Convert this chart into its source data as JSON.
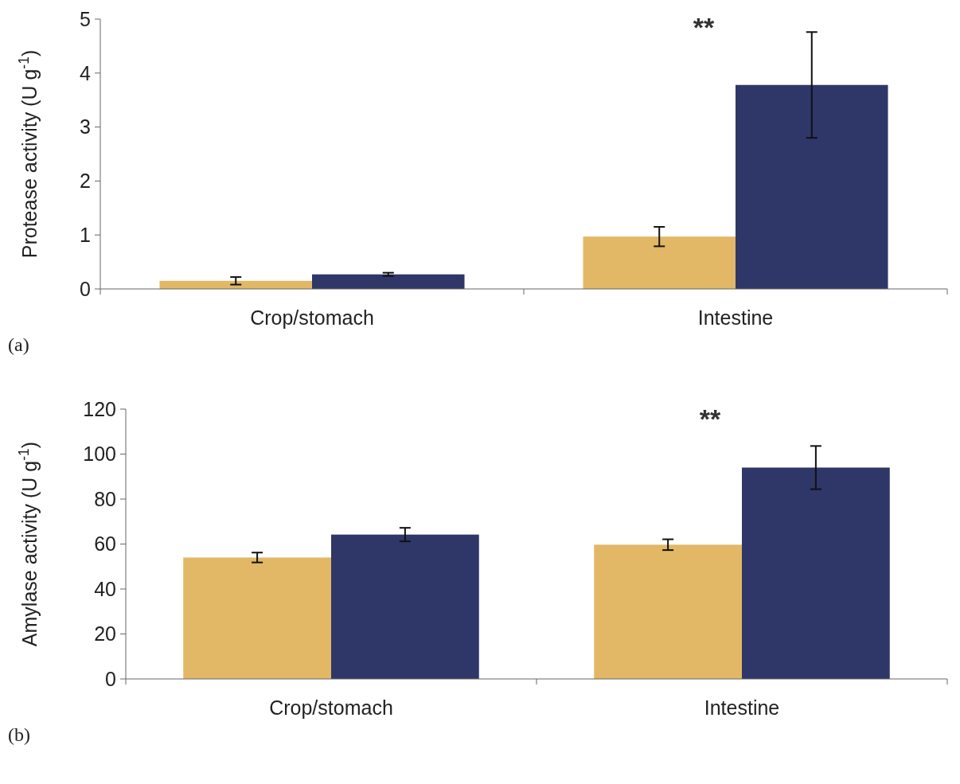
{
  "chart_data": [
    {
      "type": "bar",
      "ylabel": "Protease activity (U g$^{-1}$)",
      "categories": [
        "Crop/stomach",
        "Intestine"
      ],
      "ylim": [
        0,
        5
      ],
      "yticks": [
        0,
        1,
        2,
        3,
        4,
        5
      ],
      "series": [
        {
          "color": "#e2b866",
          "values": [
            0.15,
            0.97
          ],
          "errors": [
            0.07,
            0.18
          ]
        },
        {
          "color": "#2f3768",
          "values": [
            0.27,
            3.78
          ],
          "errors": [
            0.03,
            0.98
          ]
        }
      ],
      "annotations": [
        "**",
        "(a)"
      ]
    },
    {
      "type": "bar",
      "ylabel": "Amylase activity (U g$^{-1}$)",
      "categories": [
        "Crop/stomach",
        "Intestine"
      ],
      "ylim": [
        0,
        120
      ],
      "yticks": [
        0,
        20,
        40,
        60,
        80,
        100,
        120
      ],
      "series": [
        {
          "color": "#e2b866",
          "values": [
            54,
            59.7
          ],
          "errors": [
            2.2,
            2.4
          ]
        },
        {
          "color": "#2f3768",
          "values": [
            64.2,
            94
          ],
          "errors": [
            3,
            9.6
          ]
        }
      ],
      "annotations": [
        "**",
        "(b)"
      ]
    }
  ]
}
